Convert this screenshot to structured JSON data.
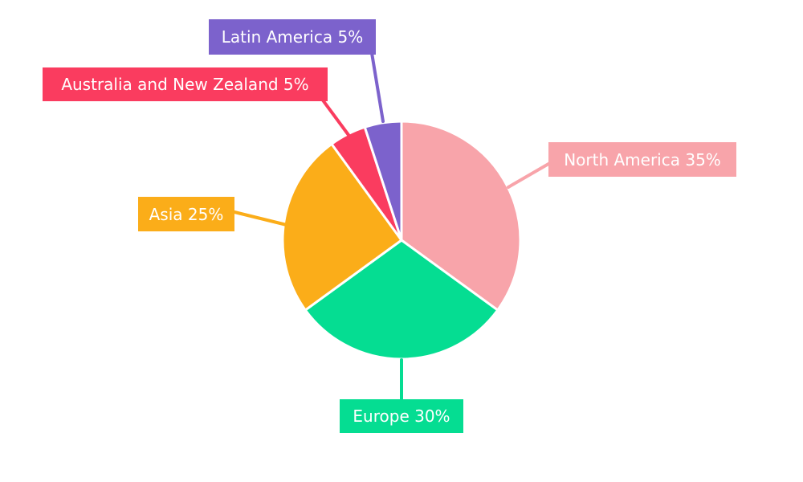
{
  "chart_data": {
    "type": "pie",
    "title": "",
    "categories": [
      "North America",
      "Europe",
      "Asia",
      "Australia and New Zealand",
      "Latin America"
    ],
    "values": [
      35,
      30,
      25,
      5,
      5
    ],
    "unit": "%",
    "labels": [
      "North America 35%",
      "Europe 30%",
      "Asia 25%",
      "Australia and New Zealand 5%",
      "Latin America 5%"
    ],
    "colors": [
      "#F8A4AA",
      "#05DD92",
      "#FBAD19",
      "#FA3C5F",
      "#7C62CC"
    ],
    "label_text_color": "#FFFFFF",
    "background_color": "#FFFFFF",
    "start_angle_deg": 0,
    "direction": "clockwise",
    "legend": "none",
    "donut": false
  }
}
